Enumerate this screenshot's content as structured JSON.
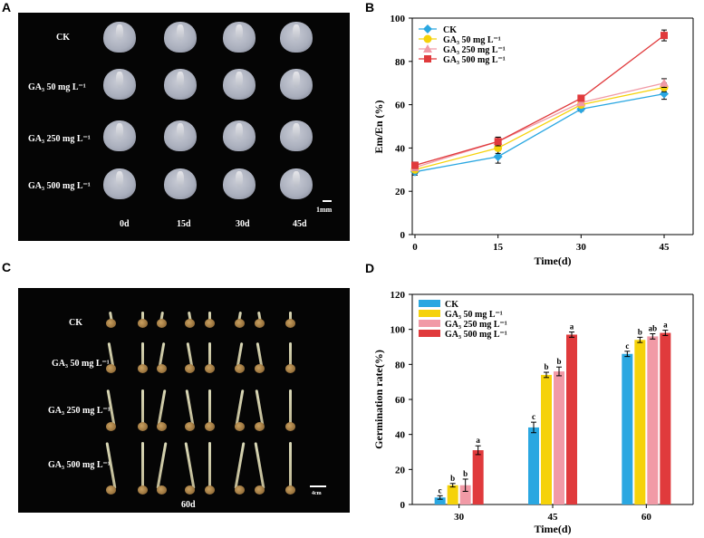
{
  "panels": {
    "a": {
      "letter": "A",
      "treatments": [
        "CK",
        "GA₃ 50 mg L⁻¹",
        "GA₃ 250 mg L⁻¹",
        "GA₃ 500 mg L⁻¹"
      ],
      "days": [
        "0d",
        "15d",
        "30d",
        "45d"
      ],
      "scale": "1mm"
    },
    "b": {
      "letter": "B"
    },
    "c": {
      "letter": "C",
      "treatments": [
        "CK",
        "GA₃ 50 mg L⁻¹",
        "GA₃ 250 mg L⁻¹",
        "GA₃ 500 mg L⁻¹"
      ],
      "day": "60d",
      "scale": "4cm"
    },
    "d": {
      "letter": "D"
    }
  },
  "chart_data": [
    {
      "type": "line",
      "panel": "B",
      "title": "",
      "xlabel": "Time(d)",
      "ylabel": "Em/En (%)",
      "x": [
        0,
        15,
        30,
        45
      ],
      "xticks": [
        "0",
        "15",
        "30",
        "45"
      ],
      "yticks": [
        "0",
        "20",
        "40",
        "60",
        "80",
        "100"
      ],
      "xlim": [
        0,
        45
      ],
      "ylim": [
        0,
        100
      ],
      "legend_position": "top-left",
      "series": [
        {
          "name": "CK",
          "marker": "diamond",
          "color": "#2aa7e1",
          "values": [
            29,
            36,
            58,
            65
          ],
          "errors": [
            1.5,
            3,
            1,
            2.5
          ]
        },
        {
          "name": "GA₃ 50 mg L⁻¹",
          "marker": "circle",
          "color": "#f5d20a",
          "values": [
            30,
            40,
            60,
            68
          ],
          "errors": [
            1.5,
            2.5,
            1,
            2
          ]
        },
        {
          "name": "GA₃ 250 mg L⁻¹",
          "marker": "triangle",
          "color": "#f19aa6",
          "values": [
            31,
            43,
            61,
            70
          ],
          "errors": [
            1.5,
            2,
            1,
            2
          ]
        },
        {
          "name": "GA₃ 500 mg L⁻¹",
          "marker": "square",
          "color": "#e03a3c",
          "values": [
            32,
            43,
            63,
            92
          ],
          "errors": [
            1.5,
            2,
            1,
            2.5
          ]
        }
      ]
    },
    {
      "type": "bar",
      "panel": "D",
      "title": "",
      "xlabel": "Time(d)",
      "ylabel": "Germination rate(%)",
      "categories": [
        "30",
        "45",
        "60"
      ],
      "yticks": [
        "0",
        "20",
        "40",
        "60",
        "80",
        "100",
        "120"
      ],
      "ylim": [
        0,
        120
      ],
      "legend_position": "top-left",
      "series": [
        {
          "name": "CK",
          "color": "#2aa7e1",
          "values": [
            4,
            44,
            86
          ],
          "errors": [
            1,
            3,
            1.5
          ],
          "letters": [
            "c",
            "c",
            "c"
          ]
        },
        {
          "name": "GA₃ 50 mg L⁻¹",
          "color": "#f5d20a",
          "values": [
            11,
            74,
            94
          ],
          "errors": [
            1,
            1.5,
            1.5
          ],
          "letters": [
            "b",
            "b",
            "b"
          ]
        },
        {
          "name": "GA₃ 250 mg L⁻¹",
          "color": "#f19aa6",
          "values": [
            11,
            76,
            96
          ],
          "errors": [
            3.5,
            2.5,
            1.5
          ],
          "letters": [
            "b",
            "b",
            "ab"
          ]
        },
        {
          "name": "GA₃ 500 mg L⁻¹",
          "color": "#e03a3c",
          "values": [
            31,
            97,
            98
          ],
          "errors": [
            2.5,
            1.5,
            1.5
          ],
          "letters": [
            "a",
            "a",
            "a"
          ]
        }
      ]
    }
  ]
}
